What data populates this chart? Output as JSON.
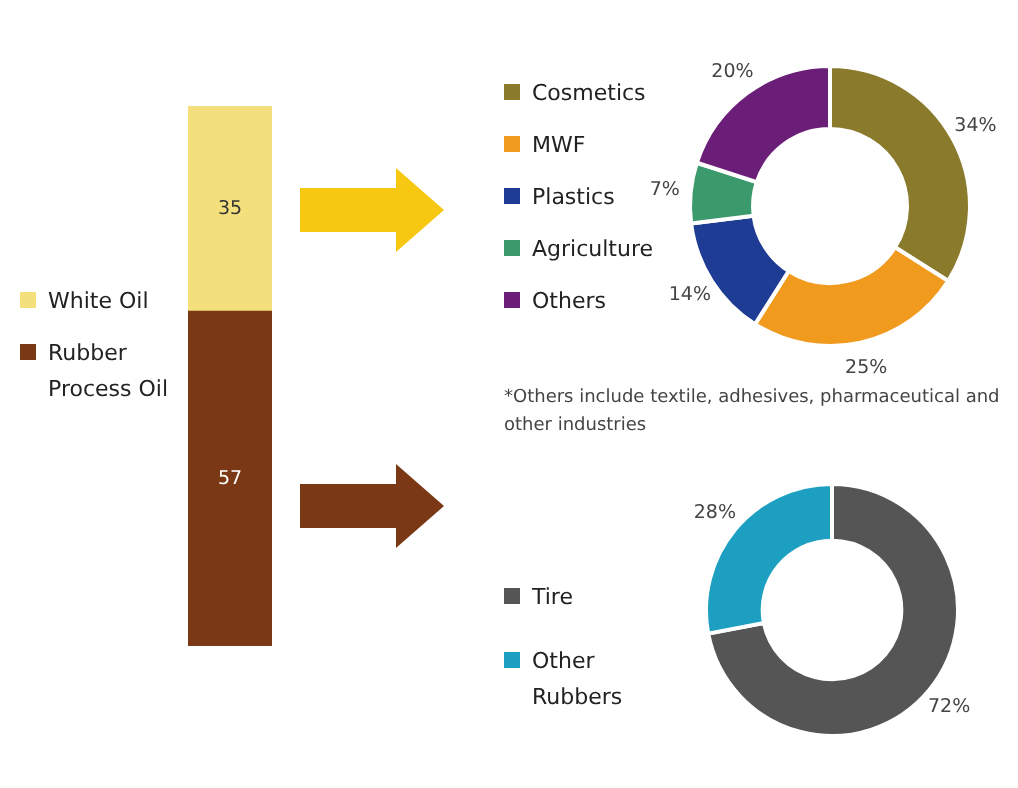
{
  "chart_data": [
    {
      "type": "bar",
      "stacked": true,
      "categories": [
        null
      ],
      "legend": "left",
      "data_labels": true,
      "series": [
        {
          "name": "Rubber Process Oil",
          "color": "#7a3814",
          "values": [
            57
          ]
        },
        {
          "name": "White Oil",
          "color": "#f3e07c",
          "values": [
            35
          ]
        }
      ]
    },
    {
      "type": "donut",
      "categories": [
        "Cosmetics",
        "MWF",
        "Plastics",
        "Agriculture",
        "Others"
      ],
      "values": [
        34,
        25,
        14,
        7,
        20
      ],
      "value_labels": [
        "34%",
        "25%",
        "14%",
        "7%",
        "20%"
      ],
      "colors": [
        "#8a7a2c",
        "#f09a1e",
        "#1f3c94",
        "#3a9a6c",
        "#6a1e78"
      ],
      "legend": "left",
      "annotations": [
        "*Others include textile, adhesives, pharmaceutical and other industries"
      ]
    },
    {
      "type": "donut",
      "categories": [
        "Tire",
        "Other Rubbers"
      ],
      "values": [
        72,
        28
      ],
      "value_labels": [
        "72%",
        "28%"
      ],
      "colors": [
        "#555555",
        "#1c9fc0"
      ],
      "legend": "left"
    }
  ]
}
